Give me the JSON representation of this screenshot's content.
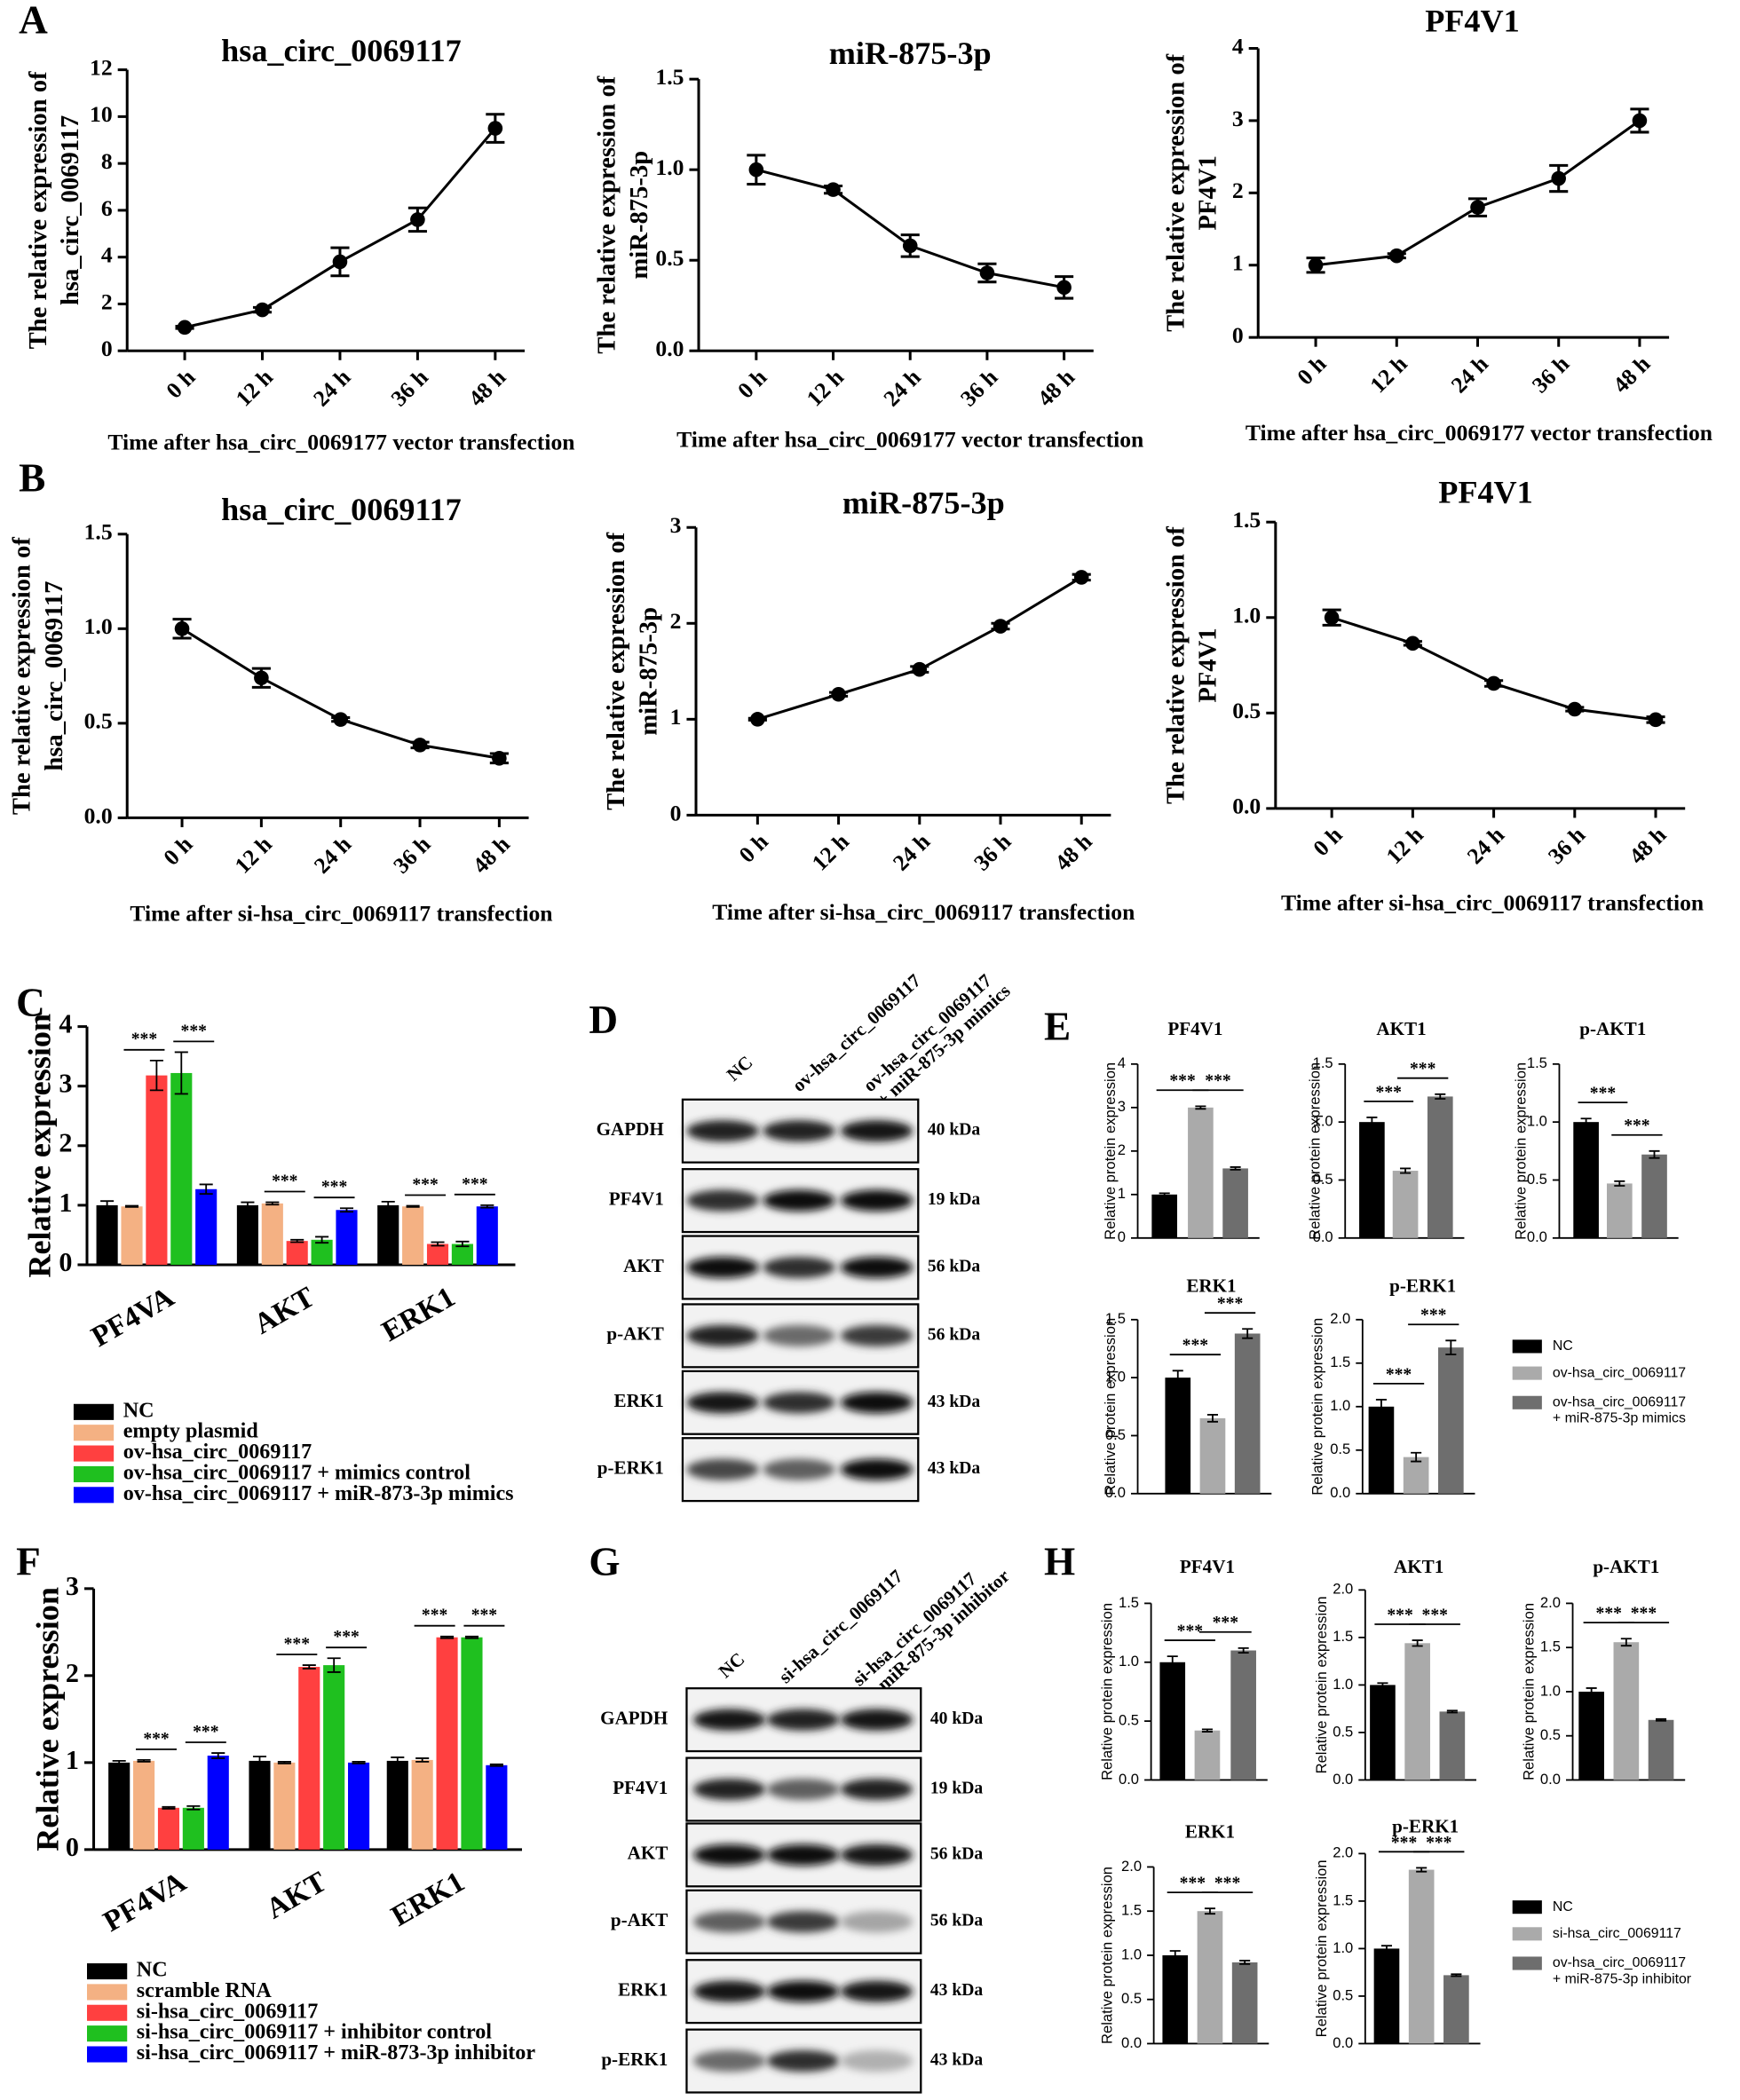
{
  "panel_labels": [
    "A",
    "B",
    "C",
    "D",
    "E",
    "F",
    "G",
    "H"
  ],
  "chart_data": [
    {
      "type": "line",
      "title": "hsa_circ_0069117",
      "ylabel": [
        "The relative expression of",
        "hsa_circ_0069117"
      ],
      "xlabel": "Time after hsa_circ_0069177 vector transfection",
      "categories": [
        "0 h",
        "12 h",
        "24 h",
        "36 h",
        "48 h"
      ],
      "values": [
        1.0,
        1.75,
        3.8,
        5.6,
        9.5
      ],
      "errors": [
        0.05,
        0.1,
        0.6,
        0.5,
        0.6
      ],
      "color": "#000000",
      "ylim": [
        0,
        12
      ],
      "yticks": [
        0,
        2,
        4,
        6,
        8,
        10,
        12
      ]
    },
    {
      "type": "line",
      "title": "miR-875-3p",
      "ylabel": [
        "The relative expression of",
        "miR-875-3p"
      ],
      "xlabel": "Time after hsa_circ_0069177 vector transfection",
      "categories": [
        "0 h",
        "12 h",
        "24 h",
        "36 h",
        "48 h"
      ],
      "values": [
        1.0,
        0.89,
        0.58,
        0.43,
        0.35
      ],
      "errors": [
        0.08,
        0.02,
        0.06,
        0.05,
        0.06
      ],
      "color": "#000000",
      "ylim": [
        0,
        1.5
      ],
      "yticks": [
        {
          "value": 0,
          "label": "0.0"
        },
        0.5,
        {
          "value": 1,
          "label": "1.0"
        },
        1.5
      ]
    },
    {
      "type": "line",
      "title": "PF4V1",
      "ylabel": [
        "The relative expression of",
        "PF4V1"
      ],
      "xlabel": "Time after hsa_circ_0069177 vector transfection",
      "categories": [
        "0 h",
        "12 h",
        "24 h",
        "36 h",
        "48 h"
      ],
      "values": [
        1.0,
        1.13,
        1.8,
        2.2,
        3.0
      ],
      "errors": [
        0.1,
        0.03,
        0.12,
        0.18,
        0.16
      ],
      "color": "#000000",
      "ylim": [
        0,
        4
      ],
      "yticks": [
        0,
        1,
        2,
        3,
        4
      ]
    },
    {
      "type": "line",
      "title": "hsa_circ_0069117",
      "ylabel": [
        "The relative expression of",
        "hsa_circ_0069117"
      ],
      "xlabel": "Time after si-hsa_circ_0069117 transfection",
      "categories": [
        "0 h",
        "12 h",
        "24 h",
        "36 h",
        "48 h"
      ],
      "values": [
        1.0,
        0.74,
        0.52,
        0.385,
        0.315
      ],
      "errors": [
        0.05,
        0.05,
        0.01,
        0.015,
        0.025
      ],
      "color": "#000000",
      "ylim": [
        0,
        1.5
      ],
      "yticks": [
        {
          "value": 0,
          "label": "0.0"
        },
        0.5,
        {
          "value": 1,
          "label": "1.0"
        },
        1.5
      ]
    },
    {
      "type": "line",
      "title": "miR-875-3p",
      "ylabel": [
        "The relative expression of",
        "miR-875-3p"
      ],
      "xlabel": "Time after si-hsa_circ_0069117 transfection",
      "categories": [
        "0 h",
        "12 h",
        "24 h",
        "36 h",
        "48 h"
      ],
      "values": [
        1.0,
        1.26,
        1.52,
        1.97,
        2.48
      ],
      "errors": [
        0.01,
        0.02,
        0.03,
        0.03,
        0.03
      ],
      "color": "#000000",
      "ylim": [
        0,
        3
      ],
      "yticks": [
        0,
        1,
        2,
        3
      ]
    },
    {
      "type": "line",
      "title": "PF4V1",
      "ylabel": [
        "The relative expression of",
        "PF4V1"
      ],
      "xlabel": "Time after si-hsa_circ_0069117 transfection",
      "categories": [
        "0 h",
        "12 h",
        "24 h",
        "36 h",
        "48 h"
      ],
      "values": [
        1.0,
        0.865,
        0.655,
        0.52,
        0.465
      ],
      "errors": [
        0.04,
        0.01,
        0.015,
        0.01,
        0.015
      ],
      "color": "#000000",
      "ylim": [
        0,
        1.5
      ],
      "yticks": [
        {
          "value": 0,
          "label": "0.0"
        },
        0.5,
        {
          "value": 1,
          "label": "1.0"
        },
        1.5
      ]
    },
    {
      "type": "grouped-bar",
      "ylabel": "Relative expression",
      "categories": [
        "PF4VA",
        "AKT",
        "ERK1"
      ],
      "series": [
        {
          "name": "NC",
          "color": "#000000",
          "values": [
            1.0,
            1.0,
            1.0
          ],
          "errors": [
            0.07,
            0.05,
            0.06
          ]
        },
        {
          "name": "empty plasmid",
          "color": "#f4b183",
          "values": [
            0.98,
            1.03,
            0.98
          ],
          "errors": [
            0.01,
            0.02,
            0.01
          ]
        },
        {
          "name": "ov-hsa_circ_0069117",
          "color": "#ff4040",
          "values": [
            3.18,
            0.4,
            0.35
          ],
          "errors": [
            0.25,
            0.02,
            0.03
          ]
        },
        {
          "name": "ov-hsa_circ_0069117 + mimics control",
          "color": "#1fc01f",
          "values": [
            3.22,
            0.42,
            0.35
          ],
          "errors": [
            0.35,
            0.05,
            0.04
          ]
        },
        {
          "name": "ov-hsa_circ_0069117 + miR-873-3p mimics",
          "color": "#0000ff",
          "values": [
            1.27,
            0.92,
            0.98
          ],
          "errors": [
            0.08,
            0.03,
            0.02
          ]
        }
      ],
      "ylim": [
        0,
        4
      ],
      "yticks": [
        0,
        1,
        2,
        3,
        4
      ],
      "annotations": [
        "***",
        "***",
        "***",
        "***",
        "***",
        "***"
      ]
    },
    {
      "type": "grouped-bar",
      "ylabel": "Relative expression",
      "categories": [
        "PF4VA",
        "AKT",
        "ERK1"
      ],
      "series": [
        {
          "name": "NC",
          "color": "#000000",
          "values": [
            1.0,
            1.02,
            1.02
          ],
          "errors": [
            0.02,
            0.05,
            0.04
          ]
        },
        {
          "name": "scramble RNA",
          "color": "#f4b183",
          "values": [
            1.02,
            1.0,
            1.03
          ],
          "errors": [
            0.01,
            0.01,
            0.02
          ]
        },
        {
          "name": "si-hsa_circ_0069117",
          "color": "#ff4040",
          "values": [
            0.48,
            2.1,
            2.44
          ],
          "errors": [
            0.01,
            0.02,
            0.01
          ]
        },
        {
          "name": "si-hsa_circ_0069117 + inhibitor control",
          "color": "#1fc01f",
          "values": [
            0.48,
            2.12,
            2.44
          ],
          "errors": [
            0.02,
            0.08,
            0.01
          ]
        },
        {
          "name": "si-hsa_circ_0069117 + miR-873-3p inhibitor",
          "color": "#0000ff",
          "values": [
            1.08,
            1.0,
            0.97
          ],
          "errors": [
            0.03,
            0.01,
            0.01
          ]
        }
      ],
      "ylim": [
        0,
        3
      ],
      "yticks": [
        0,
        1,
        2,
        3
      ],
      "annotations": [
        "***",
        "***",
        "***",
        "***",
        "***",
        "***"
      ]
    },
    {
      "type": "bar",
      "title": "PF4V1",
      "ylabel": "Relative protein expression",
      "values": [
        1.0,
        3.0,
        1.6
      ],
      "errors": [
        0.03,
        0.03,
        0.03
      ],
      "ylim": [
        0,
        4
      ],
      "yticks": [
        0,
        1,
        2,
        3,
        4
      ],
      "annotations": [
        "***",
        "***"
      ]
    },
    {
      "type": "bar",
      "title": "AKT1",
      "ylabel": "Relative protein expression",
      "values": [
        1.0,
        0.58,
        1.22
      ],
      "errors": [
        0.04,
        0.02,
        0.02
      ],
      "ylim": [
        0,
        1.5
      ],
      "yticks": [
        {
          "value": 0,
          "label": "0.0"
        },
        0.5,
        {
          "value": 1,
          "label": "1.0"
        },
        1.5
      ],
      "annotations": [
        "***",
        "***"
      ]
    },
    {
      "type": "bar",
      "title": "p-AKT1",
      "ylabel": "Relative protein expression",
      "values": [
        1.0,
        0.47,
        0.72
      ],
      "errors": [
        0.03,
        0.02,
        0.03
      ],
      "ylim": [
        0,
        1.5
      ],
      "yticks": [
        {
          "value": 0,
          "label": "0.0"
        },
        0.5,
        {
          "value": 1,
          "label": "1.0"
        },
        1.5
      ],
      "annotations": [
        "***",
        "***"
      ]
    },
    {
      "type": "bar",
      "title": "ERK1",
      "ylabel": "Relative protein expression",
      "values": [
        1.0,
        0.65,
        1.38
      ],
      "errors": [
        0.06,
        0.03,
        0.04
      ],
      "ylim": [
        0,
        1.5
      ],
      "yticks": [
        {
          "value": 0,
          "label": "0.0"
        },
        0.5,
        {
          "value": 1,
          "label": "1.0"
        },
        1.5
      ],
      "annotations": [
        "***",
        "***"
      ]
    },
    {
      "type": "bar",
      "title": "p-ERK1",
      "ylabel": "Relative protein expression",
      "values": [
        1.0,
        0.42,
        1.68
      ],
      "errors": [
        0.08,
        0.05,
        0.08
      ],
      "ylim": [
        0,
        2
      ],
      "yticks": [
        {
          "value": 0,
          "label": "0.0"
        },
        0.5,
        {
          "value": 1,
          "label": "1.0"
        },
        1.5,
        {
          "value": 2,
          "label": "2.0"
        }
      ],
      "annotations": [
        "***",
        "***"
      ]
    },
    {
      "type": "bar",
      "title": "PF4V1",
      "ylabel": "Relative protein expression",
      "values": [
        1.0,
        0.42,
        1.1
      ],
      "errors": [
        0.05,
        0.01,
        0.02
      ],
      "ylim": [
        0,
        1.5
      ],
      "yticks": [
        {
          "value": 0,
          "label": "0.0"
        },
        0.5,
        {
          "value": 1,
          "label": "1.0"
        },
        1.5
      ],
      "annotations": [
        "***",
        "***"
      ]
    },
    {
      "type": "bar",
      "title": "AKT1",
      "ylabel": "Relative protein expression",
      "values": [
        1.0,
        1.44,
        0.72
      ],
      "errors": [
        0.02,
        0.03,
        0.01
      ],
      "ylim": [
        0,
        2
      ],
      "yticks": [
        {
          "value": 0,
          "label": "0.0"
        },
        0.5,
        {
          "value": 1,
          "label": "1.0"
        },
        1.5,
        {
          "value": 2,
          "label": "2.0"
        }
      ],
      "annotations": [
        "***",
        "***"
      ]
    },
    {
      "type": "bar",
      "title": "p-AKT1",
      "ylabel": "Relative protein expression",
      "values": [
        1.0,
        1.56,
        0.68
      ],
      "errors": [
        0.04,
        0.04,
        0.01
      ],
      "ylim": [
        0,
        2
      ],
      "yticks": [
        {
          "value": 0,
          "label": "0.0"
        },
        0.5,
        {
          "value": 1,
          "label": "1.0"
        },
        1.5,
        {
          "value": 2,
          "label": "2.0"
        }
      ],
      "annotations": [
        "***",
        "***"
      ]
    },
    {
      "type": "bar",
      "title": "ERK1",
      "ylabel": "Relative protein expression",
      "values": [
        1.0,
        1.5,
        0.92
      ],
      "errors": [
        0.05,
        0.03,
        0.02
      ],
      "ylim": [
        0,
        2
      ],
      "yticks": [
        {
          "value": 0,
          "label": "0.0"
        },
        0.5,
        {
          "value": 1,
          "label": "1.0"
        },
        1.5,
        {
          "value": 2,
          "label": "2.0"
        }
      ],
      "annotations": [
        "***",
        "***"
      ]
    },
    {
      "type": "bar",
      "title": "p-ERK1",
      "ylabel": "Relative protein expression",
      "values": [
        1.0,
        1.83,
        0.72
      ],
      "errors": [
        0.03,
        0.02,
        0.01
      ],
      "ylim": [
        0,
        2
      ],
      "yticks": [
        {
          "value": 0,
          "label": "0.0"
        },
        0.5,
        {
          "value": 1,
          "label": "1.0"
        },
        1.5,
        {
          "value": 2,
          "label": "2.0"
        }
      ],
      "annotations": [
        "***",
        "***"
      ]
    }
  ],
  "legends": [
    {
      "names": [
        "NC",
        "ov-hsa_circ_0069117",
        [
          "ov-hsa_circ_0069117",
          "+ miR-875-3p mimics"
        ]
      ],
      "colors": [
        "#000000",
        "#aaaaaa",
        "#6e6e6e"
      ]
    },
    {
      "names": [
        "NC",
        "si-hsa_circ_0069117",
        [
          "ov-hsa_circ_0069117",
          "+ miR-875-3p inhibitor"
        ]
      ],
      "colors": [
        "#000000",
        "#aaaaaa",
        "#6e6e6e"
      ]
    }
  ],
  "blots": [
    {
      "columns": [
        "NC",
        "ov-hsa_circ_0069117",
        [
          "ov-hsa_circ_0069117",
          "+ miR-875-3p mimics"
        ]
      ],
      "rows": [
        "GAPDH",
        "PF4V1",
        "AKT",
        "p-AKT",
        "ERK1",
        "p-ERK1"
      ],
      "sizes": [
        "40 kDa",
        "19 kDa",
        "56 kDa",
        "56 kDa",
        "43 kDa",
        "43 kDa"
      ]
    },
    {
      "columns": [
        "NC",
        "si-hsa_circ_0069117",
        [
          "si-hsa_circ_0069117",
          "+ miR-875-3p inhibitor"
        ]
      ],
      "rows": [
        "GAPDH",
        "PF4V1",
        "AKT",
        "p-AKT",
        "ERK1",
        "p-ERK1"
      ],
      "sizes": [
        "40 kDa",
        "19 kDa",
        "56 kDa",
        "56 kDa",
        "43 kDa",
        "43 kDa"
      ]
    }
  ]
}
